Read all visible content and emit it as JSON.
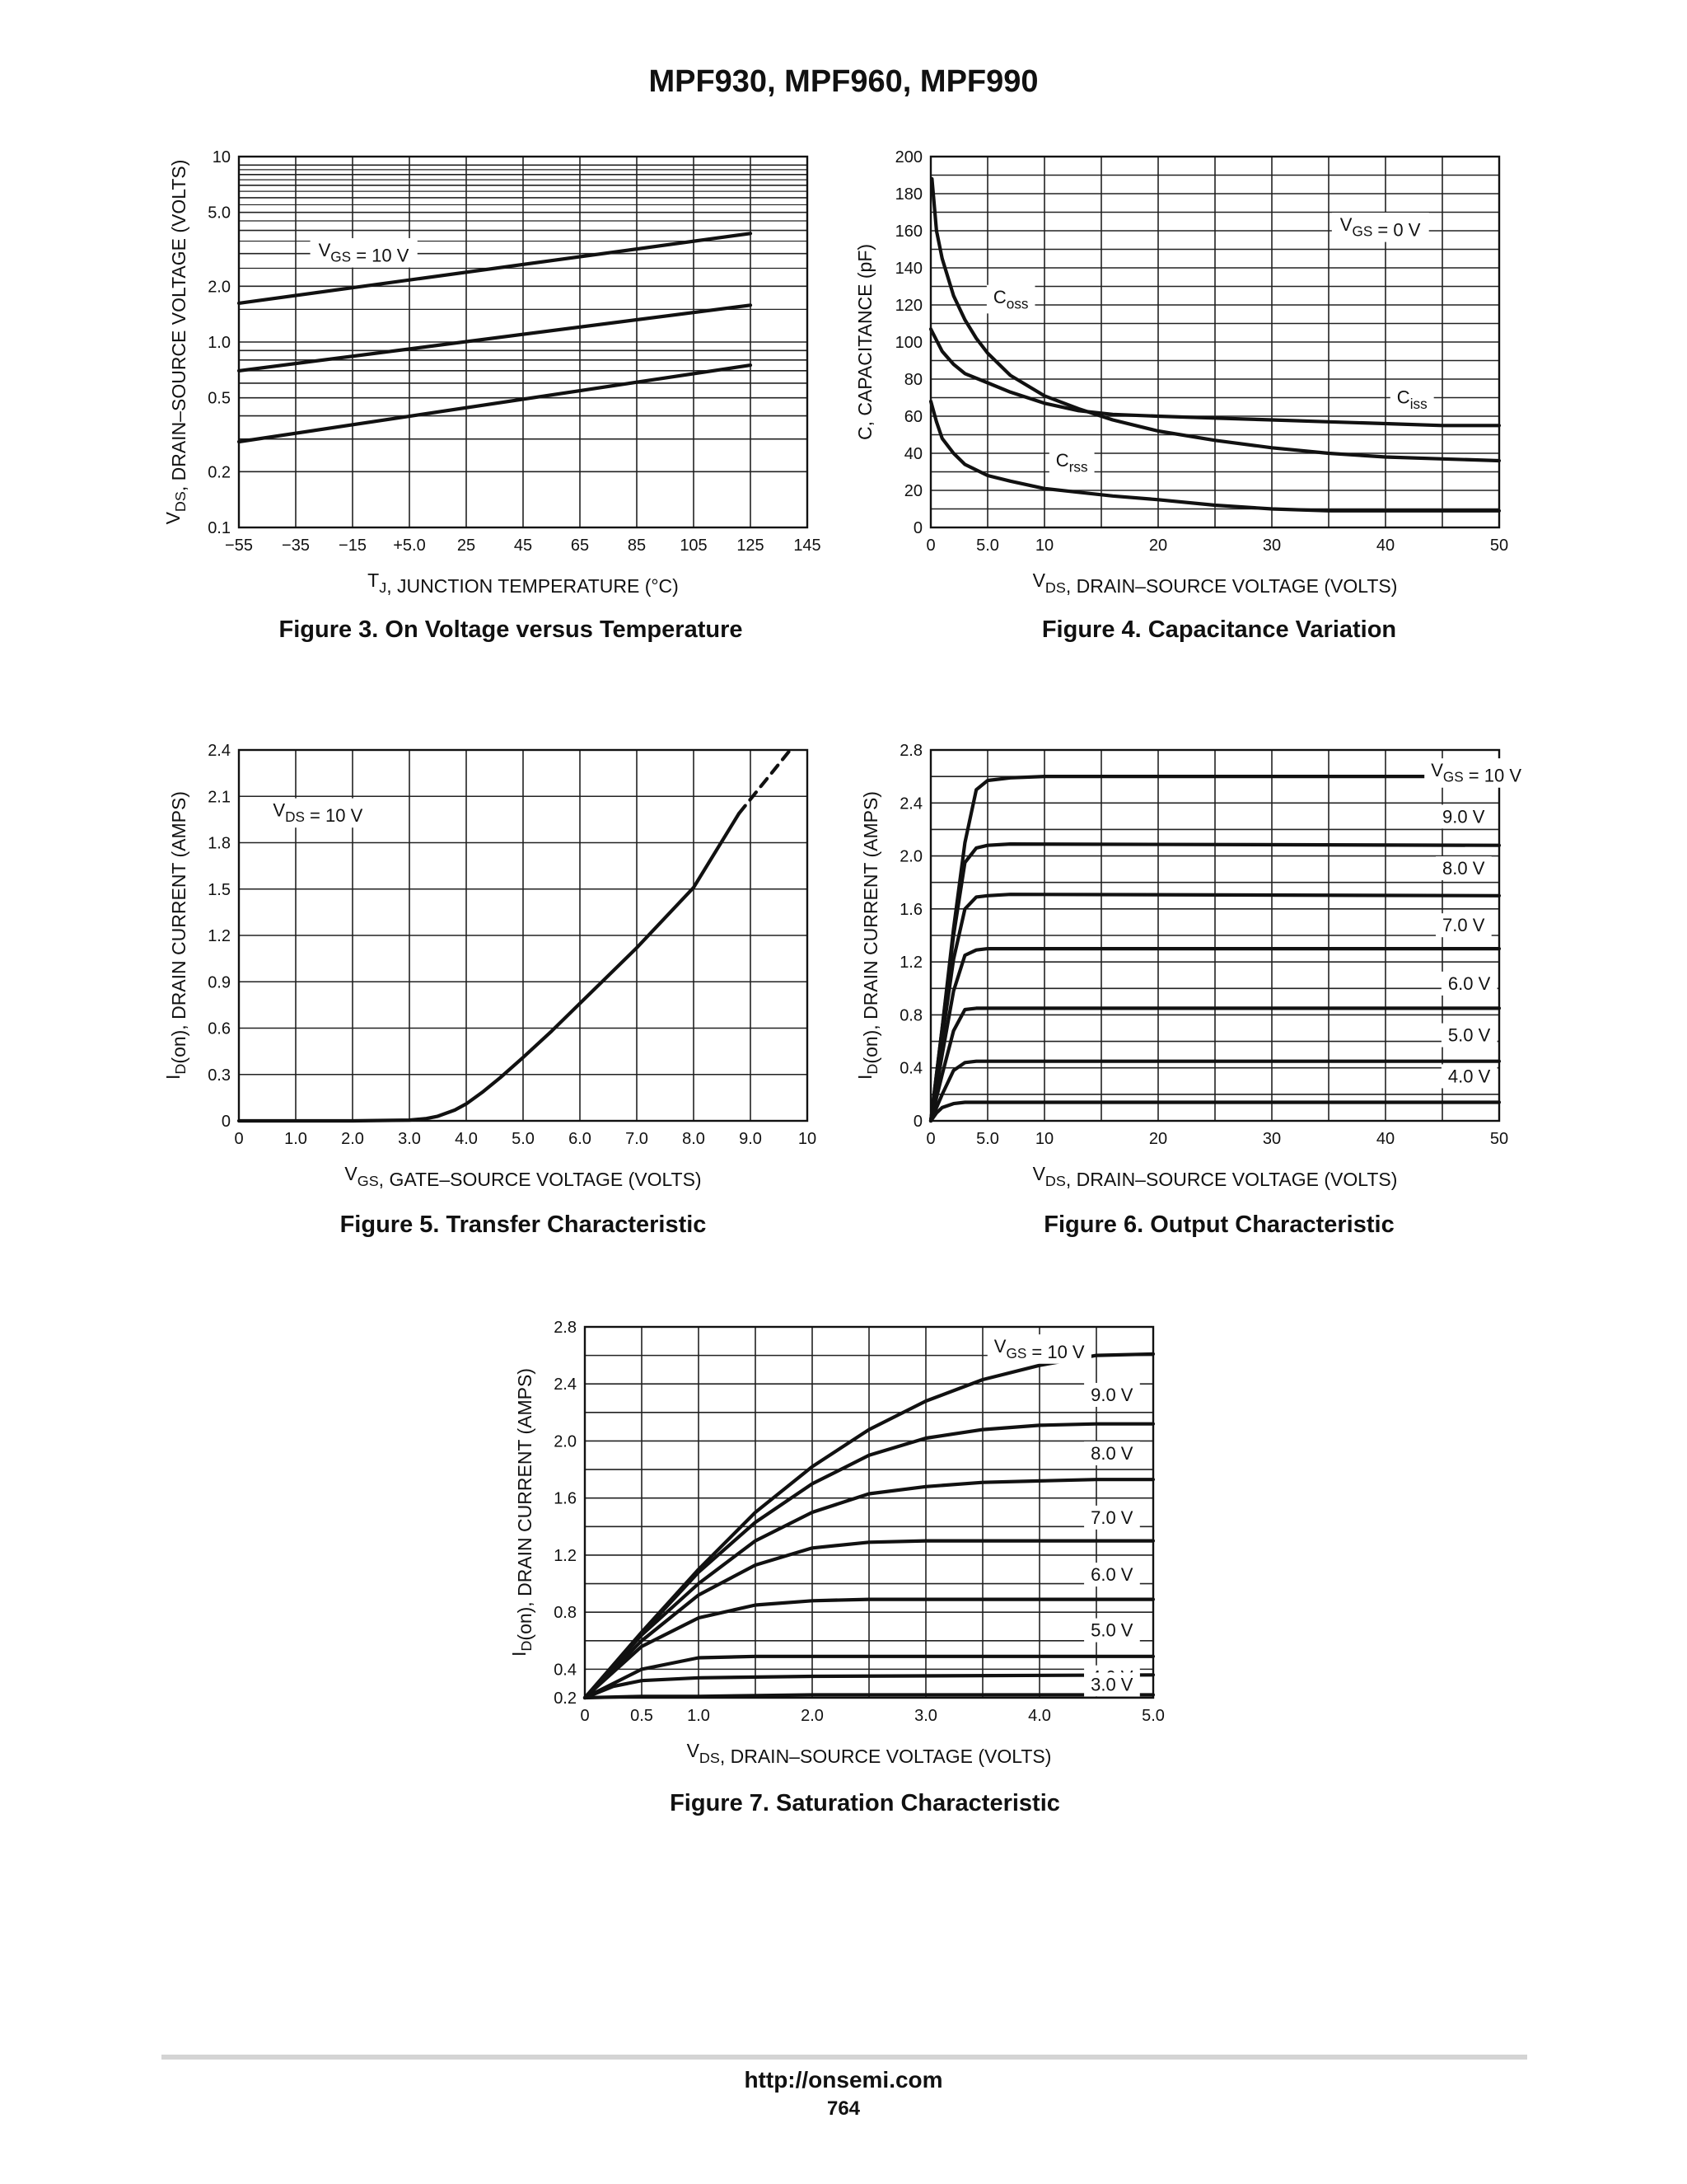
{
  "page": {
    "title": "MPF930, MPF960, MPF990",
    "footer_url": "http://onsemi.com",
    "page_number": "764"
  },
  "chart_data": [
    {
      "id": "fig3",
      "type": "line",
      "caption": "Figure 3. On Voltage versus Temperature",
      "xlabel": "T_J, JUNCTION TEMPERATURE (°C)",
      "ylabel": "V_DS, DRAIN–SOURCE VOLTAGE (VOLTS)",
      "xlim": [
        -55,
        145
      ],
      "ylim": [
        0.1,
        10
      ],
      "yscale": "log",
      "grid": true,
      "xticks": [
        -55,
        -35,
        -15,
        5,
        25,
        45,
        65,
        85,
        105,
        125,
        145
      ],
      "xticklabels": [
        "−55",
        "−35",
        "−15",
        "+5.0",
        "25",
        "45",
        "65",
        "85",
        "105",
        "125",
        "145"
      ],
      "yticks": [
        0.1,
        0.2,
        0.5,
        1,
        2,
        5,
        10
      ],
      "yticklabels": [
        "0.1",
        "0.2",
        "0.5",
        "1.0",
        "2.0",
        "5.0",
        "10"
      ],
      "annotations": [
        {
          "text": "V_GS = 10 V",
          "x": -27,
          "y": 2.9
        }
      ],
      "series": [
        {
          "x": [
            -55,
            125
          ],
          "y": [
            1.62,
            3.85
          ]
        },
        {
          "x": [
            -55,
            125
          ],
          "y": [
            0.7,
            1.58
          ]
        },
        {
          "x": [
            -55,
            125
          ],
          "y": [
            0.29,
            0.75
          ]
        }
      ]
    },
    {
      "id": "fig4",
      "type": "line",
      "caption": "Figure 4. Capacitance Variation",
      "xlabel": "V_DS, DRAIN–SOURCE VOLTAGE (VOLTS)",
      "ylabel": "C, CAPACITANCE (pF)",
      "xlim": [
        0,
        50
      ],
      "ylim": [
        0,
        200
      ],
      "grid": true,
      "xticks": [
        0,
        5,
        10,
        20,
        30,
        40,
        50
      ],
      "xticklabels": [
        "0",
        "5.0",
        "10",
        "20",
        "30",
        "40",
        "50"
      ],
      "yticks": [
        0,
        20,
        40,
        60,
        80,
        100,
        120,
        140,
        160,
        180,
        200
      ],
      "yticklabels": [
        "0",
        "20",
        "40",
        "60",
        "80",
        "100",
        "120",
        "140",
        "160",
        "180",
        "200"
      ],
      "annotations": [
        {
          "text": "V_GS = 0 V",
          "x": 36,
          "y": 160
        }
      ],
      "series": [
        {
          "name": "C_oss",
          "label_at": [
            5.5,
            121
          ],
          "x": [
            0.1,
            0.5,
            1,
            2,
            3,
            4,
            5,
            7,
            10,
            13,
            16,
            20,
            25,
            30,
            35,
            40,
            45,
            50
          ],
          "y": [
            188,
            160,
            145,
            125,
            112,
            102,
            94,
            82,
            71,
            64,
            58,
            52,
            47,
            43,
            40,
            38,
            37,
            36
          ]
        },
        {
          "name": "C_iss",
          "label_at": [
            41,
            67
          ],
          "x": [
            0,
            1,
            2,
            3,
            5,
            7,
            10,
            13,
            16,
            20,
            25,
            30,
            35,
            40,
            45,
            50
          ],
          "y": [
            107,
            95,
            88,
            83,
            78,
            73,
            67,
            63,
            61,
            60,
            59,
            58,
            57,
            56,
            55,
            55
          ]
        },
        {
          "name": "C_rss",
          "label_at": [
            11,
            33
          ],
          "x": [
            0,
            0.5,
            1,
            2,
            3,
            5,
            7,
            10,
            13,
            16,
            20,
            25,
            30,
            35,
            40,
            45,
            50
          ],
          "y": [
            68,
            57,
            48,
            40,
            34,
            28,
            25,
            21,
            19,
            17,
            15,
            12,
            10,
            9,
            9,
            9,
            9
          ]
        }
      ]
    },
    {
      "id": "fig5",
      "type": "line",
      "caption": "Figure 5. Transfer Characteristic",
      "xlabel": "V_GS, GATE–SOURCE VOLTAGE (VOLTS)",
      "ylabel": "I_D(on), DRAIN CURRENT (AMPS)",
      "xlim": [
        0,
        10
      ],
      "ylim": [
        0,
        2.4
      ],
      "grid": true,
      "xticks": [
        0,
        1,
        2,
        3,
        4,
        5,
        6,
        7,
        8,
        9,
        10
      ],
      "xticklabels": [
        "0",
        "1.0",
        "2.0",
        "3.0",
        "4.0",
        "5.0",
        "6.0",
        "7.0",
        "8.0",
        "9.0",
        "10"
      ],
      "yticks": [
        0,
        0.3,
        0.6,
        0.9,
        1.2,
        1.5,
        1.8,
        2.1,
        2.4
      ],
      "yticklabels": [
        "0",
        "0.3",
        "0.6",
        "0.9",
        "1.2",
        "1.5",
        "1.8",
        "2.1",
        "2.4"
      ],
      "annotations": [
        {
          "text": "V_DS = 10 V",
          "x": 0.6,
          "y": 1.97
        }
      ],
      "series": [
        {
          "x": [
            0,
            2,
            3,
            3.3,
            3.5,
            3.8,
            4.0,
            4.3,
            4.6,
            5.0,
            5.5,
            6.0,
            7.0,
            8.0,
            8.8
          ],
          "y": [
            0,
            0,
            0.005,
            0.015,
            0.03,
            0.07,
            0.11,
            0.19,
            0.28,
            0.41,
            0.58,
            0.76,
            1.12,
            1.51,
            1.99
          ]
        },
        {
          "style": "dashed",
          "x": [
            8.8,
            9.7
          ],
          "y": [
            1.99,
            2.4
          ]
        }
      ]
    },
    {
      "id": "fig6",
      "type": "line",
      "caption": "Figure 6. Output Characteristic",
      "xlabel": "V_DS, DRAIN–SOURCE VOLTAGE (VOLTS)",
      "ylabel": "I_D(on), DRAIN CURRENT (AMPS)",
      "xlim": [
        0,
        50
      ],
      "ylim": [
        0,
        2.8
      ],
      "grid": true,
      "xticks": [
        0,
        5,
        10,
        20,
        30,
        40,
        50
      ],
      "xticklabels": [
        "0",
        "5.0",
        "10",
        "20",
        "30",
        "40",
        "50"
      ],
      "yticks": [
        0,
        0.4,
        0.8,
        1.2,
        1.6,
        2.0,
        2.4,
        2.8
      ],
      "yticklabels": [
        "0",
        "0.4",
        "0.8",
        "1.2",
        "1.6",
        "2.0",
        "2.4",
        "2.8"
      ],
      "series": [
        {
          "name": "V_GS = 10 V",
          "label_at": [
            44,
            2.6
          ],
          "x": [
            0,
            1,
            2,
            3,
            4,
            5,
            7,
            10,
            50
          ],
          "y": [
            0,
            0.7,
            1.45,
            2.1,
            2.5,
            2.57,
            2.59,
            2.6,
            2.6
          ]
        },
        {
          "name": "9.0 V",
          "label_at": [
            45,
            2.25
          ],
          "x": [
            0,
            1,
            2,
            3,
            4,
            5,
            7,
            50
          ],
          "y": [
            0,
            0.7,
            1.4,
            1.95,
            2.06,
            2.08,
            2.09,
            2.08
          ]
        },
        {
          "name": "8.0 V",
          "label_at": [
            45,
            1.86
          ],
          "x": [
            0,
            1,
            2,
            3,
            4,
            5,
            7,
            50
          ],
          "y": [
            0,
            0.62,
            1.22,
            1.6,
            1.69,
            1.7,
            1.71,
            1.7
          ]
        },
        {
          "name": "7.0 V",
          "label_at": [
            45,
            1.43
          ],
          "x": [
            0,
            1,
            2,
            3,
            4,
            5,
            50
          ],
          "y": [
            0,
            0.5,
            0.98,
            1.25,
            1.29,
            1.3,
            1.3
          ]
        },
        {
          "name": "6.0 V",
          "label_at": [
            45.5,
            0.99
          ],
          "x": [
            0,
            1,
            2,
            3,
            4,
            5,
            50
          ],
          "y": [
            0,
            0.35,
            0.68,
            0.84,
            0.85,
            0.85,
            0.85
          ]
        },
        {
          "name": "5.0 V",
          "label_at": [
            45.5,
            0.6
          ],
          "x": [
            0,
            1,
            2,
            3,
            4,
            50
          ],
          "y": [
            0,
            0.2,
            0.38,
            0.44,
            0.45,
            0.45
          ]
        },
        {
          "name": "4.0 V",
          "label_at": [
            45.5,
            0.29
          ],
          "x": [
            0,
            0.5,
            1,
            2,
            3,
            50
          ],
          "y": [
            0,
            0.06,
            0.1,
            0.13,
            0.14,
            0.14
          ]
        }
      ]
    },
    {
      "id": "fig7",
      "type": "line",
      "caption": "Figure 7. Saturation Characteristic",
      "xlabel": "V_DS, DRAIN–SOURCE VOLTAGE (VOLTS)",
      "ylabel": "I_D(on), DRAIN CURRENT (AMPS)",
      "xlim": [
        0,
        5
      ],
      "ylim": [
        0.2,
        2.8
      ],
      "grid": true,
      "xticks": [
        0,
        0.5,
        1,
        2,
        3,
        4,
        5
      ],
      "xticklabels": [
        "0",
        "0.5",
        "1.0",
        "2.0",
        "3.0",
        "4.0",
        "5.0"
      ],
      "yticks": [
        0.2,
        0.4,
        0.8,
        1.2,
        1.6,
        2.0,
        2.4,
        2.8
      ],
      "yticklabels": [
        "0.2",
        "0.4",
        "0.8",
        "1.2",
        "1.6",
        "2.0",
        "2.4",
        "2.8"
      ],
      "series": [
        {
          "name": "V_GS = 10 V",
          "label_at": [
            3.6,
            2.62
          ],
          "x": [
            0,
            0.5,
            1,
            1.5,
            2,
            2.5,
            3,
            3.5,
            4,
            4.5,
            5
          ],
          "y": [
            0.2,
            0.66,
            1.1,
            1.5,
            1.82,
            2.08,
            2.28,
            2.43,
            2.53,
            2.6,
            2.61
          ]
        },
        {
          "name": "9.0 V",
          "label_at": [
            4.45,
            2.28
          ],
          "x": [
            0,
            0.5,
            1,
            1.5,
            2,
            2.5,
            3,
            3.5,
            4,
            4.5,
            5
          ],
          "y": [
            0.2,
            0.65,
            1.08,
            1.43,
            1.7,
            1.9,
            2.02,
            2.08,
            2.11,
            2.12,
            2.12
          ]
        },
        {
          "name": "8.0 V",
          "label_at": [
            4.45,
            1.87
          ],
          "x": [
            0,
            0.5,
            1,
            1.5,
            2,
            2.5,
            3,
            3.5,
            4,
            4.5,
            5
          ],
          "y": [
            0.2,
            0.64,
            1.0,
            1.3,
            1.5,
            1.63,
            1.68,
            1.71,
            1.72,
            1.73,
            1.73
          ]
        },
        {
          "name": "7.0 V",
          "label_at": [
            4.45,
            1.42
          ],
          "x": [
            0,
            0.5,
            1,
            1.5,
            2,
            2.5,
            3,
            3.5,
            4,
            5
          ],
          "y": [
            0.2,
            0.6,
            0.92,
            1.13,
            1.25,
            1.29,
            1.3,
            1.3,
            1.3,
            1.3
          ]
        },
        {
          "name": "6.0 V",
          "label_at": [
            4.45,
            1.02
          ],
          "x": [
            0,
            0.5,
            1,
            1.5,
            2,
            2.5,
            3,
            4,
            5
          ],
          "y": [
            0.2,
            0.56,
            0.76,
            0.85,
            0.88,
            0.89,
            0.89,
            0.89,
            0.89
          ]
        },
        {
          "name": "5.0 V",
          "label_at": [
            4.45,
            0.63
          ],
          "x": [
            0,
            0.5,
            1,
            1.5,
            2,
            3,
            5
          ],
          "y": [
            0.2,
            0.4,
            0.48,
            0.49,
            0.49,
            0.49,
            0.49
          ]
        },
        {
          "name": "4.0 V",
          "label_at": [
            4.45,
            0.3
          ],
          "x": [
            0,
            0.25,
            0.5,
            1,
            2,
            5
          ],
          "y": [
            0.2,
            0.28,
            0.32,
            0.34,
            0.35,
            0.36
          ]
        },
        {
          "name": "3.0 V",
          "label_at": [
            4.45,
            0.25
          ],
          "x": [
            0,
            0.5,
            1,
            2,
            5
          ],
          "y": [
            0.2,
            0.21,
            0.21,
            0.22,
            0.22
          ]
        }
      ]
    }
  ]
}
